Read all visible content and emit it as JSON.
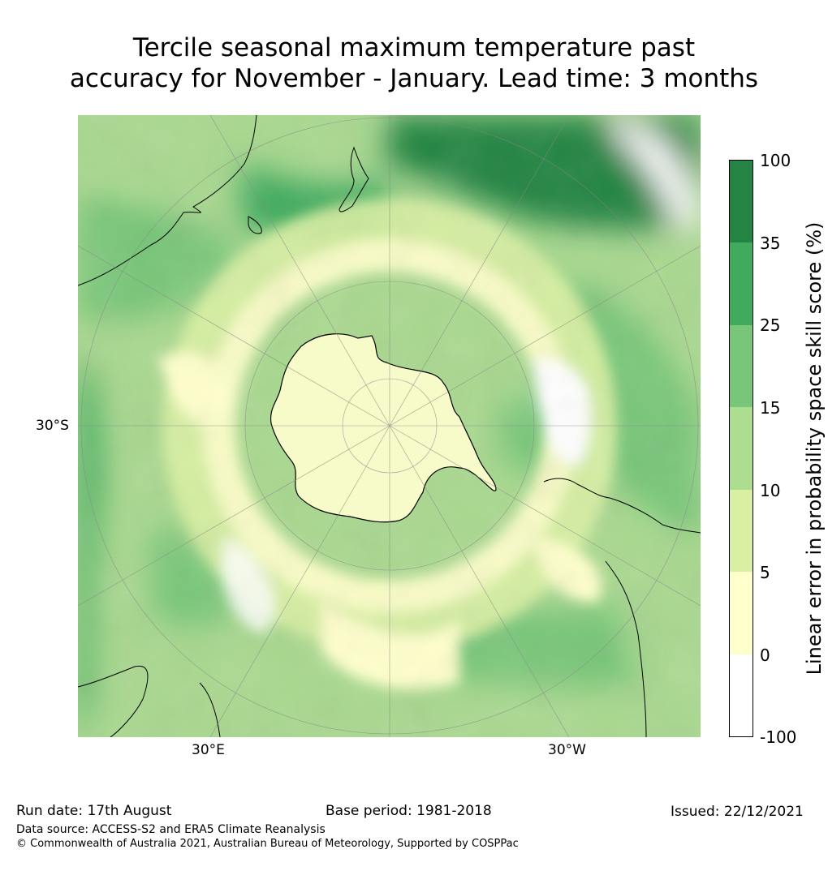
{
  "title_line1": "Tercile seasonal maximum temperature past",
  "title_line2": "accuracy for November - January. Lead time: 3 months",
  "map": {
    "lat_label": "30°S",
    "lon_label_left": "30°E",
    "lon_label_right": "30°W",
    "colors": {
      "ocean_base": "#a9d88f",
      "antarctica": "#f7fbc9",
      "coast": "#000000",
      "grid": "#888888"
    }
  },
  "colorbar": {
    "label": "Linear error in probability space skill score (%)",
    "ticks": [
      "100",
      "35",
      "25",
      "15",
      "10",
      "5",
      "0",
      "-100"
    ],
    "colors": [
      "#238443",
      "#41ab5d",
      "#78c679",
      "#addd8e",
      "#d9f0a3",
      "#ffffcc",
      "#ffffff"
    ]
  },
  "footer": {
    "run_date": "Run date: 17th August",
    "base_period": "Base period: 1981-2018",
    "issued": "Issued: 22/12/2021",
    "data_source": "Data source: ACCESS-S2 and ERA5 Climate Reanalysis",
    "copyright": "© Commonwealth of Australia 2021, Australian Bureau of Meteorology, Supported by COSPPac"
  }
}
